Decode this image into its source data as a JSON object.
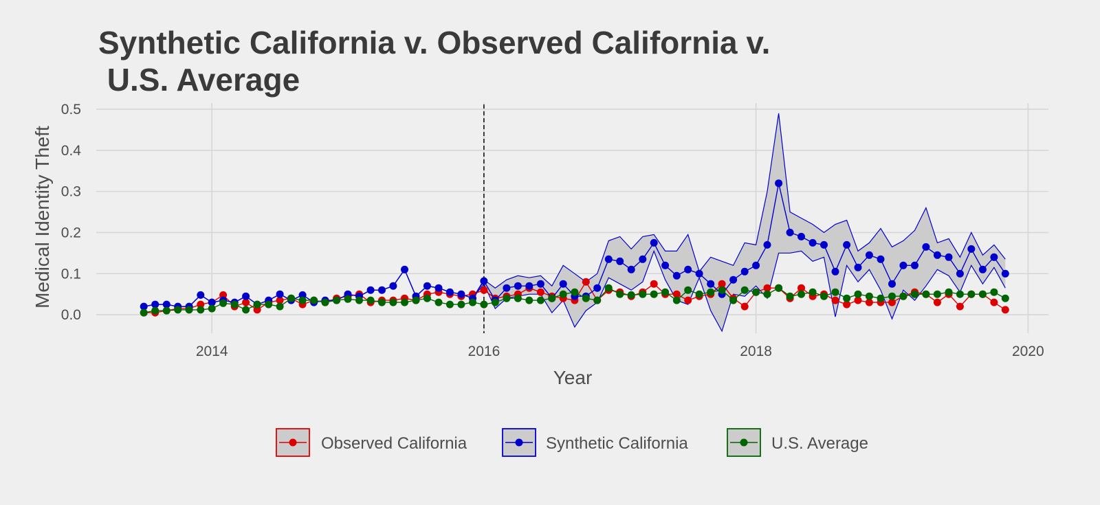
{
  "chart_data": {
    "type": "line",
    "title_lines": [
      "Synthetic California v. Observed California v.",
      " U.S. Average"
    ],
    "xlabel": "Year",
    "ylabel": "Medical Identity Theft",
    "xlim": [
      2013.15,
      2020.15
    ],
    "ylim": [
      -0.045,
      0.515
    ],
    "x_ticks": [
      2014,
      2016,
      2018,
      2020
    ],
    "x_tick_labels": [
      "2014",
      "2016",
      "2018",
      "2020"
    ],
    "y_ticks": [
      0.0,
      0.1,
      0.2,
      0.3,
      0.4,
      0.5
    ],
    "y_tick_labels": [
      "0.0",
      "0.1",
      "0.2",
      "0.3",
      "0.4",
      "0.5"
    ],
    "grid": true,
    "vline": {
      "x": 2016.0,
      "style": "dashed"
    },
    "legend_position": "bottom",
    "x": [
      2013.5,
      2013.583,
      2013.667,
      2013.75,
      2013.833,
      2013.917,
      2014.0,
      2014.083,
      2014.167,
      2014.25,
      2014.333,
      2014.417,
      2014.5,
      2014.583,
      2014.667,
      2014.75,
      2014.833,
      2014.917,
      2015.0,
      2015.083,
      2015.167,
      2015.25,
      2015.333,
      2015.417,
      2015.5,
      2015.583,
      2015.667,
      2015.75,
      2015.833,
      2015.917,
      2016.0,
      2016.083,
      2016.167,
      2016.25,
      2016.333,
      2016.417,
      2016.5,
      2016.583,
      2016.667,
      2016.75,
      2016.833,
      2016.917,
      2017.0,
      2017.083,
      2017.167,
      2017.25,
      2017.333,
      2017.417,
      2017.5,
      2017.583,
      2017.667,
      2017.75,
      2017.833,
      2017.917,
      2018.0,
      2018.083,
      2018.167,
      2018.25,
      2018.333,
      2018.417,
      2018.5,
      2018.583,
      2018.667,
      2018.75,
      2018.833,
      2018.917,
      2019.0,
      2019.083,
      2019.167,
      2019.25,
      2019.333,
      2019.417,
      2019.5,
      2019.583,
      2019.667,
      2019.75,
      2019.833
    ],
    "series": [
      {
        "name": "Observed California",
        "color": "#dd0000",
        "values": [
          0.005,
          0.005,
          0.01,
          0.015,
          0.015,
          0.025,
          0.03,
          0.048,
          0.02,
          0.03,
          0.012,
          0.03,
          0.035,
          0.04,
          0.025,
          0.035,
          0.03,
          0.04,
          0.045,
          0.05,
          0.03,
          0.035,
          0.035,
          0.04,
          0.035,
          0.05,
          0.055,
          0.05,
          0.045,
          0.05,
          0.06,
          0.04,
          0.045,
          0.05,
          0.065,
          0.055,
          0.045,
          0.04,
          0.035,
          0.08,
          0.035,
          0.06,
          0.055,
          0.045,
          0.055,
          0.075,
          0.05,
          0.05,
          0.035,
          0.045,
          0.05,
          0.075,
          0.04,
          0.02,
          0.055,
          0.065,
          0.065,
          0.04,
          0.065,
          0.045,
          0.05,
          0.035,
          0.025,
          0.035,
          0.03,
          0.03,
          0.03,
          0.045,
          0.055,
          0.05,
          0.03,
          0.05,
          0.02,
          0.05,
          0.05,
          0.03,
          0.012
        ]
      },
      {
        "name": "Synthetic California",
        "color": "#0000cc",
        "values": [
          0.02,
          0.025,
          0.025,
          0.02,
          0.02,
          0.048,
          0.03,
          0.035,
          0.03,
          0.045,
          0.025,
          0.035,
          0.05,
          0.035,
          0.048,
          0.03,
          0.035,
          0.035,
          0.05,
          0.045,
          0.06,
          0.06,
          0.07,
          0.11,
          0.045,
          0.07,
          0.065,
          0.055,
          0.05,
          0.04,
          0.082,
          0.035,
          0.065,
          0.07,
          0.07,
          0.075,
          0.04,
          0.075,
          0.045,
          0.045,
          0.065,
          0.135,
          0.13,
          0.11,
          0.135,
          0.175,
          0.12,
          0.095,
          0.11,
          0.1,
          0.075,
          0.05,
          0.085,
          0.105,
          0.12,
          0.17,
          0.32,
          0.2,
          0.19,
          0.175,
          0.17,
          0.105,
          0.17,
          0.115,
          0.145,
          0.135,
          0.075,
          0.12,
          0.12,
          0.165,
          0.145,
          0.14,
          0.1,
          0.16,
          0.11,
          0.14,
          0.1
        ]
      },
      {
        "name": "U.S. Average",
        "color": "#006400",
        "values": [
          0.005,
          0.01,
          0.01,
          0.012,
          0.012,
          0.012,
          0.015,
          0.028,
          0.025,
          0.012,
          0.025,
          0.025,
          0.02,
          0.04,
          0.035,
          0.035,
          0.03,
          0.035,
          0.038,
          0.035,
          0.035,
          0.03,
          0.03,
          0.03,
          0.035,
          0.04,
          0.03,
          0.025,
          0.025,
          0.03,
          0.025,
          0.03,
          0.04,
          0.04,
          0.035,
          0.035,
          0.04,
          0.05,
          0.055,
          0.04,
          0.035,
          0.065,
          0.05,
          0.048,
          0.05,
          0.05,
          0.055,
          0.035,
          0.06,
          0.05,
          0.055,
          0.06,
          0.035,
          0.06,
          0.055,
          0.05,
          0.065,
          0.045,
          0.05,
          0.055,
          0.045,
          0.055,
          0.04,
          0.05,
          0.045,
          0.04,
          0.045,
          0.045,
          0.05,
          0.05,
          0.05,
          0.055,
          0.05,
          0.05,
          0.05,
          0.055,
          0.04
        ]
      }
    ],
    "band": {
      "fill": "#cccccc",
      "stroke": "#0000cc",
      "upper": [
        0.02,
        0.025,
        0.025,
        0.02,
        0.02,
        0.048,
        0.03,
        0.035,
        0.03,
        0.045,
        0.025,
        0.035,
        0.05,
        0.035,
        0.048,
        0.03,
        0.035,
        0.035,
        0.05,
        0.045,
        0.06,
        0.06,
        0.07,
        0.11,
        0.045,
        0.07,
        0.065,
        0.055,
        0.05,
        0.04,
        0.085,
        0.065,
        0.085,
        0.095,
        0.09,
        0.095,
        0.07,
        0.12,
        0.1,
        0.08,
        0.1,
        0.18,
        0.19,
        0.16,
        0.19,
        0.195,
        0.155,
        0.155,
        0.195,
        0.105,
        0.14,
        0.13,
        0.12,
        0.175,
        0.17,
        0.3,
        0.49,
        0.25,
        0.235,
        0.22,
        0.2,
        0.22,
        0.23,
        0.155,
        0.175,
        0.21,
        0.165,
        0.18,
        0.205,
        0.26,
        0.175,
        0.185,
        0.14,
        0.2,
        0.145,
        0.17,
        0.135
      ],
      "lower": [
        0.02,
        0.025,
        0.025,
        0.02,
        0.02,
        0.048,
        0.03,
        0.035,
        0.03,
        0.045,
        0.025,
        0.035,
        0.05,
        0.035,
        0.048,
        0.03,
        0.035,
        0.035,
        0.05,
        0.045,
        0.06,
        0.06,
        0.07,
        0.11,
        0.045,
        0.07,
        0.065,
        0.055,
        0.05,
        0.04,
        0.075,
        0.015,
        0.04,
        0.045,
        0.05,
        0.05,
        0.005,
        0.035,
        -0.03,
        0.01,
        0.03,
        0.09,
        0.075,
        0.06,
        0.08,
        0.155,
        0.085,
        0.035,
        0.025,
        0.09,
        0.01,
        -0.04,
        0.05,
        0.045,
        0.07,
        0.04,
        0.15,
        0.15,
        0.155,
        0.13,
        0.14,
        -0.005,
        0.12,
        0.08,
        0.11,
        0.06,
        -0.01,
        0.06,
        0.035,
        0.07,
        0.11,
        0.095,
        0.055,
        0.12,
        0.075,
        0.115,
        0.065
      ]
    }
  }
}
